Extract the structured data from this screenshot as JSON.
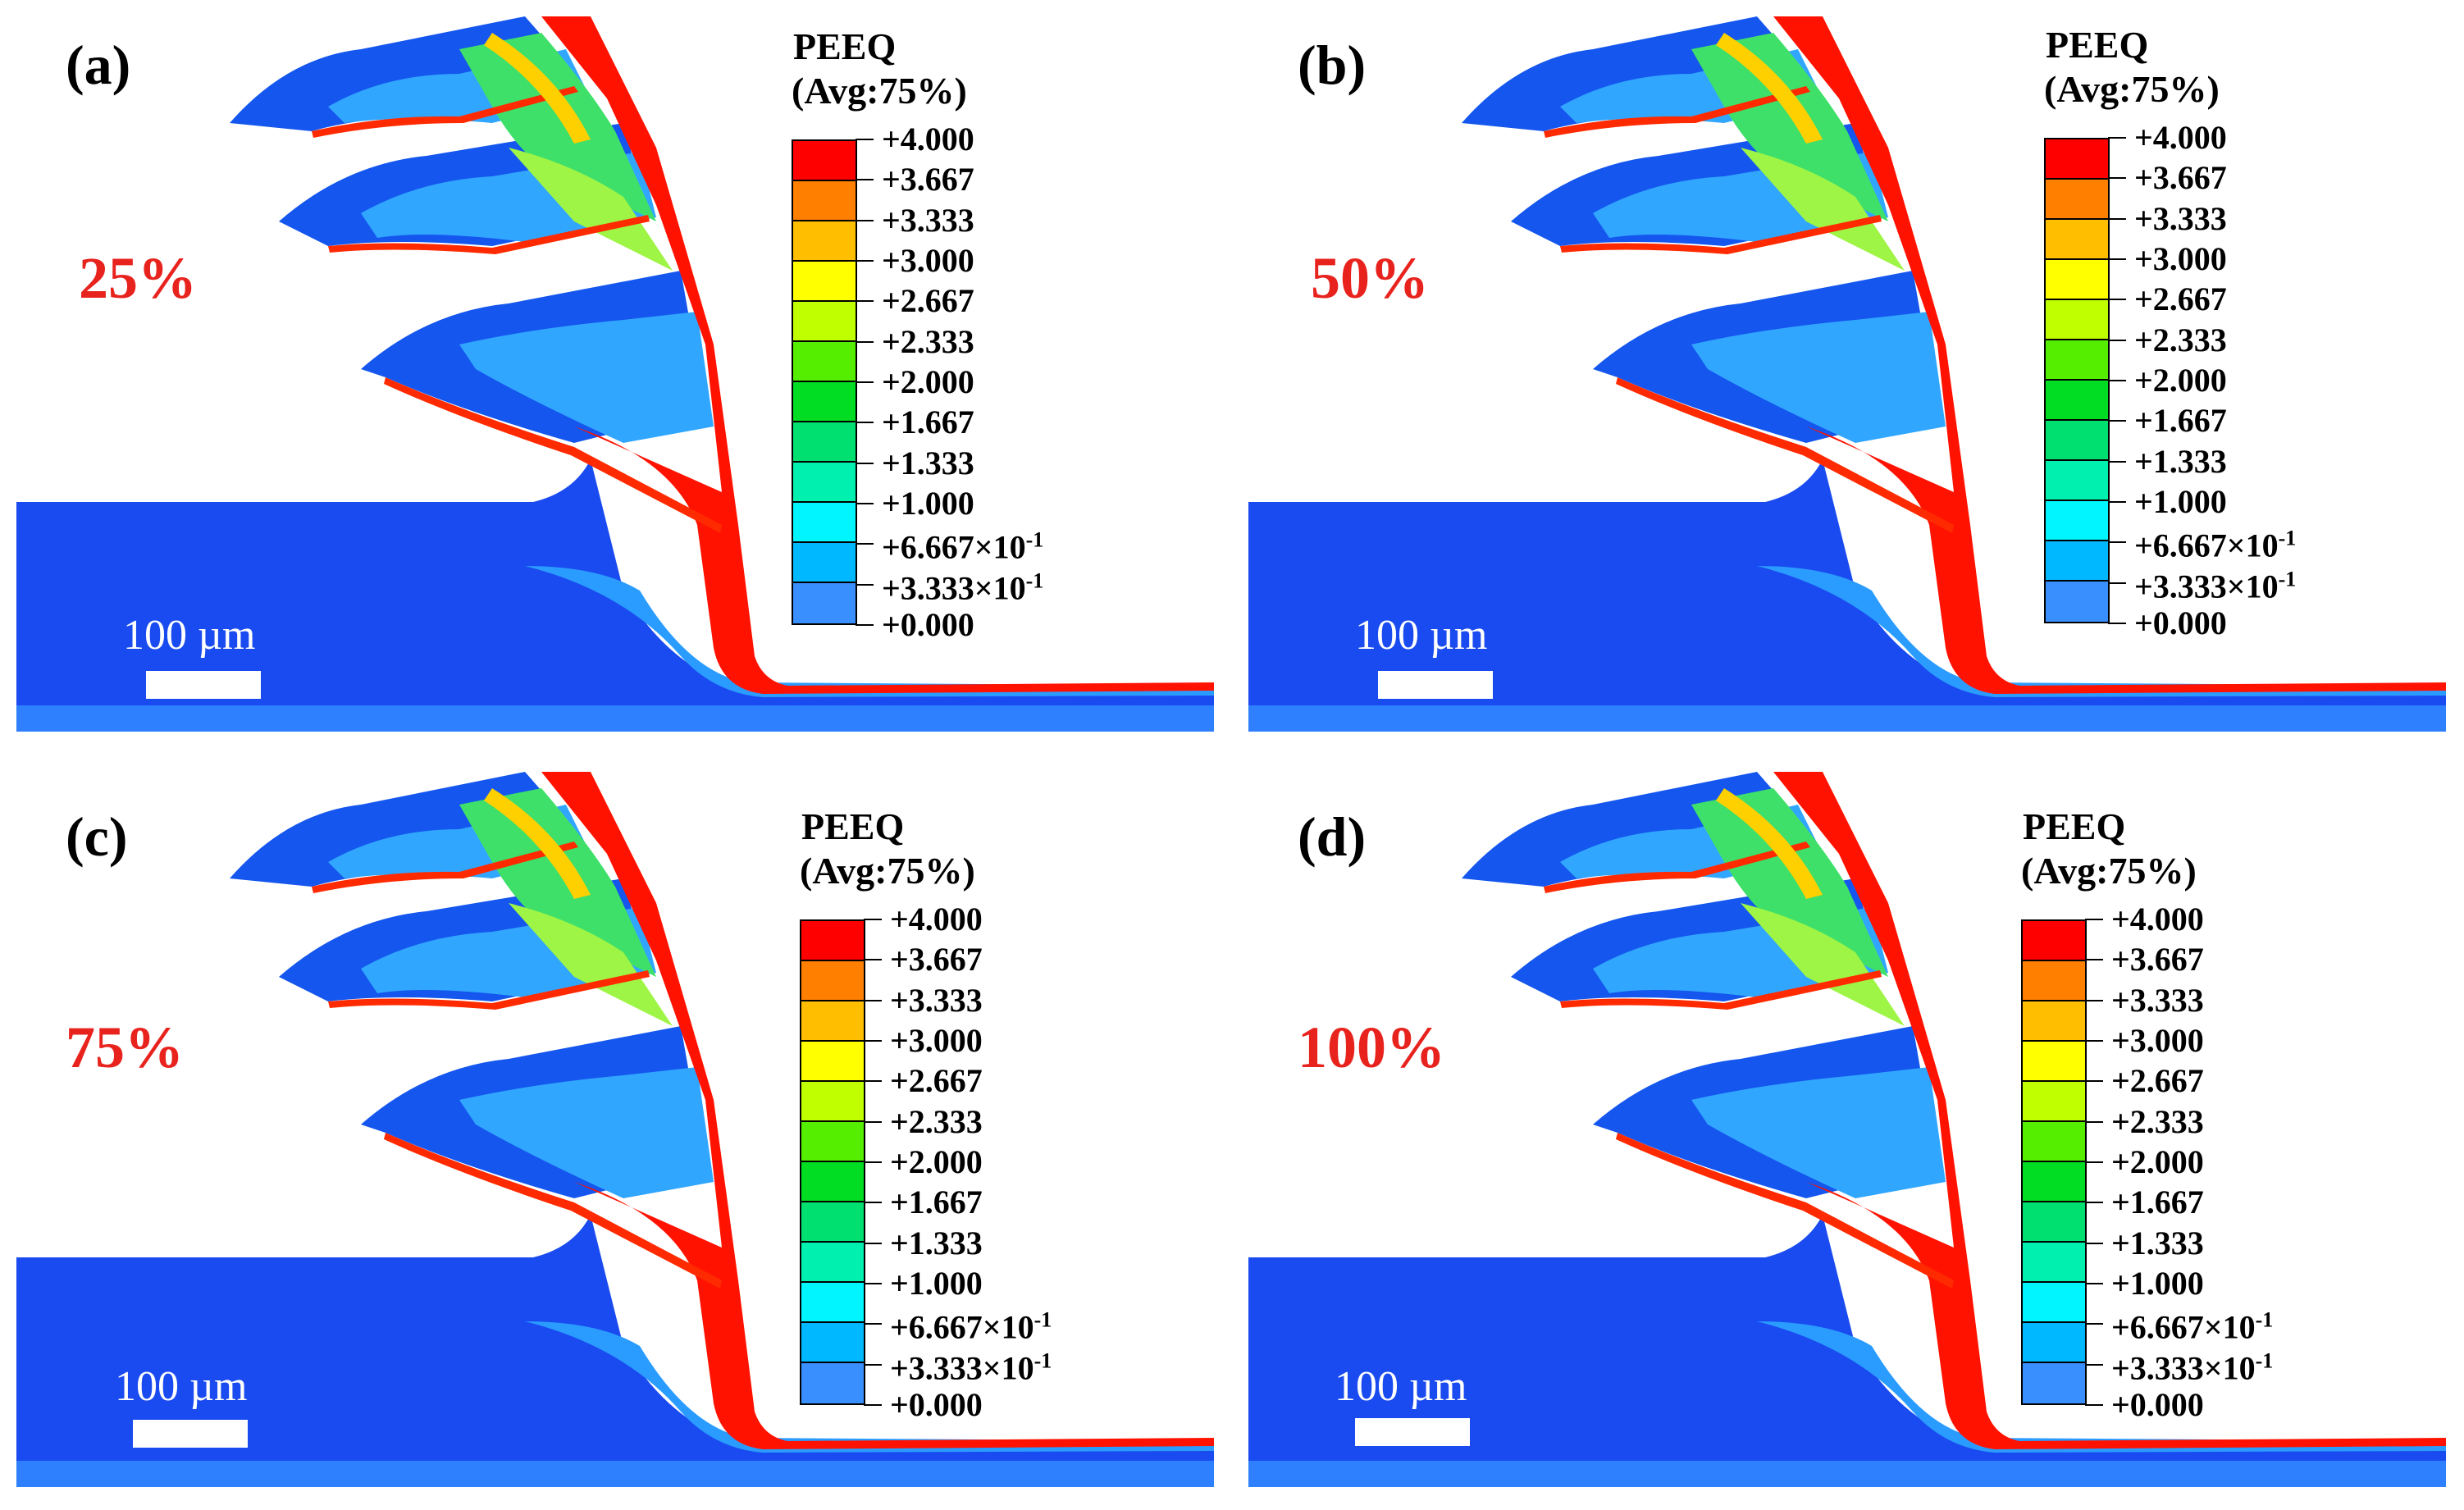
{
  "figure": {
    "legend": {
      "title_line1": "PEEQ",
      "title_line2": "(Avg:75%)",
      "levels": [
        {
          "mantissa": "+4.000",
          "exp": ""
        },
        {
          "mantissa": "+3.667",
          "exp": ""
        },
        {
          "mantissa": "+3.333",
          "exp": ""
        },
        {
          "mantissa": "+3.000",
          "exp": ""
        },
        {
          "mantissa": "+2.667",
          "exp": ""
        },
        {
          "mantissa": "+2.333",
          "exp": ""
        },
        {
          "mantissa": "+2.000",
          "exp": ""
        },
        {
          "mantissa": "+1.667",
          "exp": ""
        },
        {
          "mantissa": "+1.333",
          "exp": ""
        },
        {
          "mantissa": "+1.000",
          "exp": ""
        },
        {
          "mantissa": "+6.667×10",
          "exp": "-1"
        },
        {
          "mantissa": "+3.333×10",
          "exp": "-1"
        },
        {
          "mantissa": "+0.000",
          "exp": ""
        }
      ],
      "colors": [
        "#ff0000",
        "#ff7f00",
        "#ffbf00",
        "#ffff00",
        "#bfff00",
        "#55ee00",
        "#00dd22",
        "#00e070",
        "#00f0b0",
        "#00f5ff",
        "#00b8ff",
        "#3a8fff",
        "#0048ff"
      ]
    },
    "scale_bar_label": "100 µm",
    "panels": [
      {
        "label": "(a)",
        "percent": "25%"
      },
      {
        "label": "(b)",
        "percent": "50%"
      },
      {
        "label": "(c)",
        "percent": "75%"
      },
      {
        "label": "(d)",
        "percent": "100%"
      }
    ]
  }
}
